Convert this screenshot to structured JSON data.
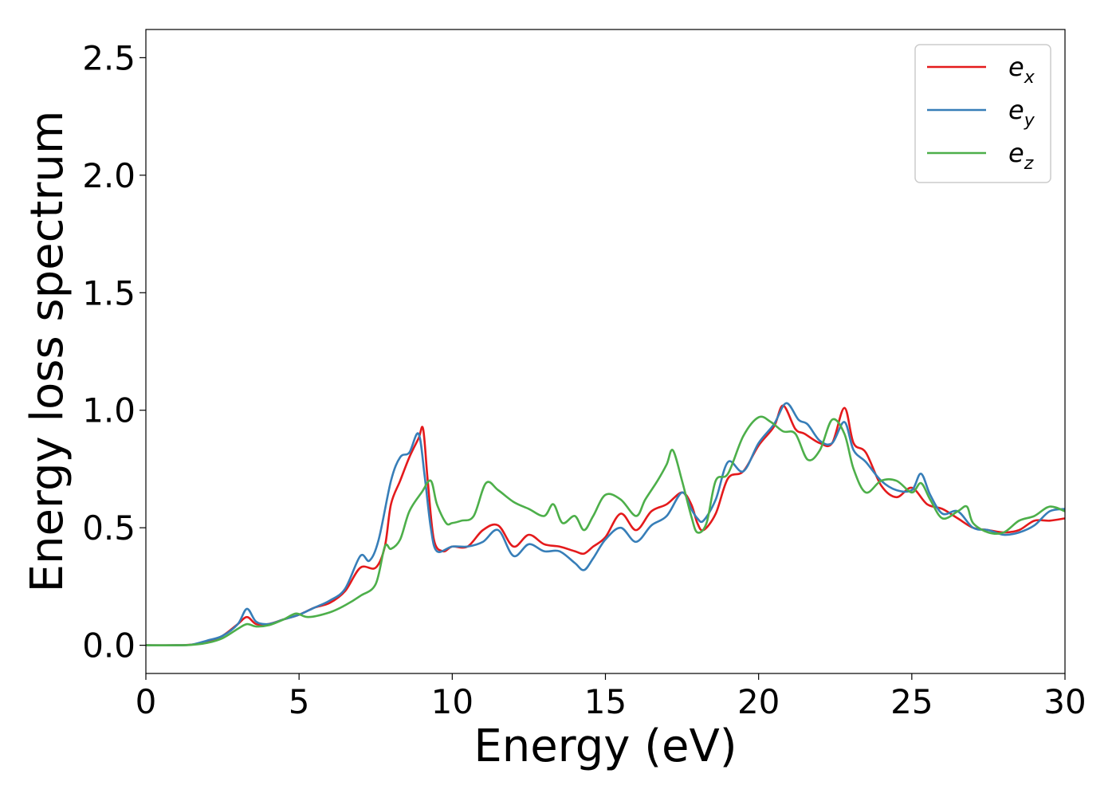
{
  "chart_data": {
    "type": "line",
    "xlabel": "Energy (eV)",
    "ylabel": "Energy loss spectrum",
    "xlim": [
      0,
      30
    ],
    "ylim": [
      -0.12,
      2.62
    ],
    "xticks": [
      0,
      5,
      10,
      15,
      20,
      25,
      30
    ],
    "yticks": [
      0.0,
      0.5,
      1.0,
      1.5,
      2.0,
      2.5
    ],
    "xtick_labels": [
      "0",
      "5",
      "10",
      "15",
      "20",
      "25",
      "30"
    ],
    "ytick_labels": [
      "0.0",
      "0.5",
      "1.0",
      "1.5",
      "2.0",
      "2.5"
    ],
    "grid": false,
    "legend_position": "top-right",
    "series": [
      {
        "name": "e_x",
        "label_base": "e",
        "label_sub": "x",
        "color": "#e41a1c",
        "x": [
          0,
          1,
          1.5,
          2,
          2.5,
          3,
          3.3,
          3.6,
          4,
          4.5,
          5,
          5.5,
          6,
          6.5,
          7,
          7.5,
          7.8,
          8,
          8.3,
          8.6,
          8.9,
          9.05,
          9.2,
          9.4,
          9.7,
          10,
          10.5,
          11,
          11.5,
          12,
          12.5,
          13,
          13.5,
          14,
          14.3,
          14.6,
          15,
          15.5,
          16,
          16.5,
          17,
          17.5,
          17.8,
          18,
          18.2,
          18.6,
          19,
          19.5,
          20,
          20.5,
          20.8,
          21.2,
          21.5,
          22,
          22.4,
          22.8,
          23.1,
          23.5,
          24,
          24.5,
          25,
          25.5,
          26,
          26.5,
          27,
          27.5,
          28,
          28.5,
          29,
          29.5,
          30
        ],
        "y": [
          0,
          0,
          0.003,
          0.015,
          0.04,
          0.09,
          0.12,
          0.09,
          0.09,
          0.11,
          0.13,
          0.16,
          0.18,
          0.23,
          0.33,
          0.33,
          0.42,
          0.6,
          0.7,
          0.8,
          0.88,
          0.92,
          0.7,
          0.45,
          0.4,
          0.42,
          0.42,
          0.49,
          0.51,
          0.42,
          0.47,
          0.43,
          0.42,
          0.4,
          0.39,
          0.42,
          0.46,
          0.56,
          0.49,
          0.57,
          0.6,
          0.65,
          0.6,
          0.52,
          0.49,
          0.56,
          0.71,
          0.74,
          0.85,
          0.93,
          1.02,
          0.92,
          0.9,
          0.86,
          0.86,
          1.01,
          0.86,
          0.82,
          0.68,
          0.63,
          0.67,
          0.6,
          0.58,
          0.54,
          0.5,
          0.49,
          0.48,
          0.49,
          0.53,
          0.53,
          0.54
        ]
      },
      {
        "name": "e_y",
        "label_base": "e",
        "label_sub": "y",
        "color": "#377eb8",
        "x": [
          0,
          1,
          1.5,
          2,
          2.5,
          3,
          3.3,
          3.6,
          4,
          4.5,
          5,
          5.5,
          6,
          6.5,
          7,
          7.3,
          7.6,
          8,
          8.3,
          8.6,
          8.9,
          9.1,
          9.3,
          9.5,
          10,
          10.5,
          11,
          11.5,
          12,
          12.5,
          13,
          13.5,
          14,
          14.3,
          14.6,
          15,
          15.5,
          16,
          16.5,
          17,
          17.5,
          17.8,
          18,
          18.2,
          18.6,
          19,
          19.5,
          20,
          20.5,
          20.9,
          21.3,
          21.6,
          22,
          22.4,
          22.8,
          23.1,
          23.5,
          24,
          24.5,
          25,
          25.3,
          25.6,
          26,
          26.5,
          27,
          27.5,
          28,
          28.5,
          29,
          29.5,
          30
        ],
        "y": [
          0,
          0,
          0.003,
          0.02,
          0.04,
          0.09,
          0.155,
          0.1,
          0.09,
          0.11,
          0.13,
          0.16,
          0.19,
          0.24,
          0.38,
          0.36,
          0.45,
          0.7,
          0.8,
          0.82,
          0.9,
          0.72,
          0.5,
          0.4,
          0.42,
          0.42,
          0.44,
          0.49,
          0.38,
          0.43,
          0.4,
          0.4,
          0.35,
          0.32,
          0.37,
          0.45,
          0.5,
          0.44,
          0.51,
          0.55,
          0.65,
          0.58,
          0.54,
          0.53,
          0.62,
          0.78,
          0.74,
          0.86,
          0.94,
          1.03,
          0.96,
          0.94,
          0.87,
          0.86,
          0.95,
          0.83,
          0.78,
          0.7,
          0.66,
          0.66,
          0.73,
          0.64,
          0.56,
          0.57,
          0.5,
          0.49,
          0.47,
          0.48,
          0.51,
          0.57,
          0.58
        ]
      },
      {
        "name": "e_z",
        "label_base": "e",
        "label_sub": "z",
        "color": "#4daf4a",
        "x": [
          0,
          1,
          1.5,
          2,
          2.5,
          3,
          3.3,
          3.6,
          4,
          4.5,
          4.9,
          5.3,
          6,
          6.5,
          7,
          7.5,
          7.8,
          8,
          8.3,
          8.6,
          9,
          9.3,
          9.5,
          9.8,
          10,
          10.3,
          10.7,
          11.1,
          11.5,
          12,
          12.5,
          13,
          13.3,
          13.6,
          14,
          14.3,
          14.6,
          15,
          15.5,
          16,
          16.3,
          16.7,
          17,
          17.2,
          17.5,
          17.8,
          18,
          18.3,
          18.6,
          19,
          19.5,
          20,
          20.4,
          20.8,
          21.2,
          21.6,
          22,
          22.4,
          22.8,
          23.1,
          23.5,
          24,
          24.5,
          25,
          25.3,
          25.6,
          26,
          26.5,
          26.8,
          27,
          27.5,
          28,
          28.5,
          29,
          29.5,
          30
        ],
        "y": [
          0,
          0,
          0.002,
          0.01,
          0.03,
          0.07,
          0.09,
          0.08,
          0.085,
          0.11,
          0.135,
          0.12,
          0.14,
          0.17,
          0.21,
          0.26,
          0.42,
          0.41,
          0.45,
          0.57,
          0.65,
          0.7,
          0.6,
          0.52,
          0.52,
          0.53,
          0.55,
          0.69,
          0.66,
          0.61,
          0.58,
          0.55,
          0.6,
          0.52,
          0.55,
          0.49,
          0.55,
          0.64,
          0.62,
          0.55,
          0.62,
          0.7,
          0.77,
          0.83,
          0.7,
          0.55,
          0.48,
          0.52,
          0.7,
          0.73,
          0.89,
          0.97,
          0.95,
          0.91,
          0.9,
          0.79,
          0.83,
          0.96,
          0.9,
          0.75,
          0.65,
          0.7,
          0.7,
          0.65,
          0.69,
          0.62,
          0.54,
          0.57,
          0.59,
          0.52,
          0.48,
          0.48,
          0.53,
          0.55,
          0.59,
          0.57
        ]
      }
    ]
  }
}
